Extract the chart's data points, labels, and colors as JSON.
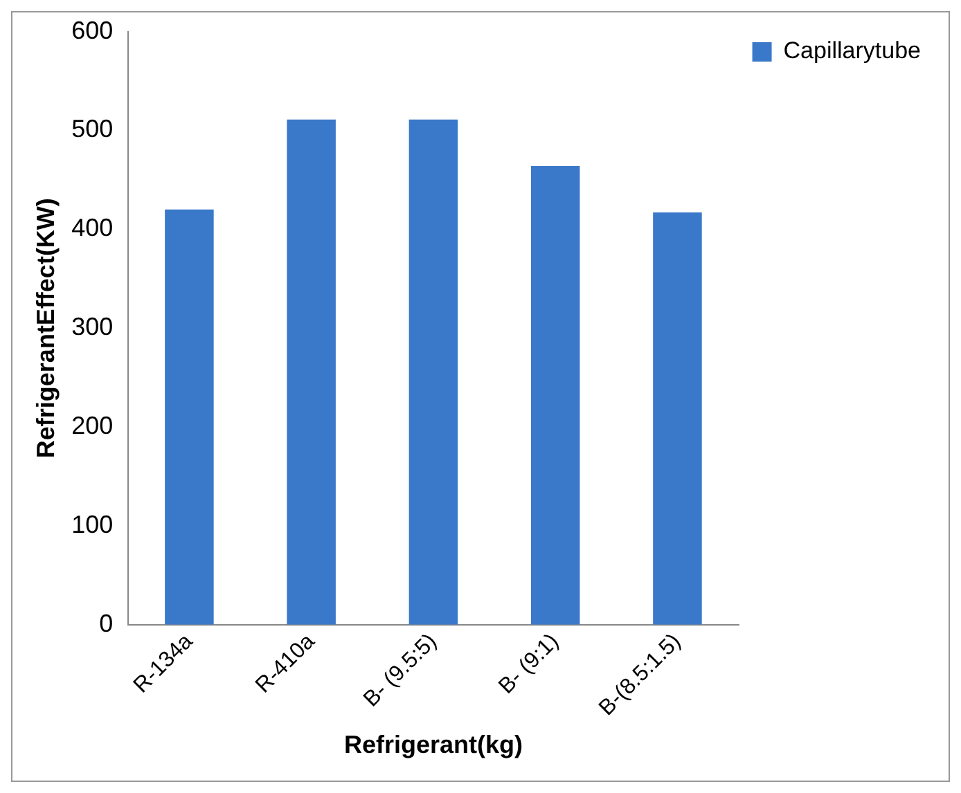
{
  "chart_data": {
    "type": "bar",
    "xlabel": "Refrigerant(kg)",
    "ylabel": "RefrigerantEffect(KW)",
    "categories": [
      "R-134a",
      "R-410a",
      "B- (9.5:5)",
      "B- (9:1)",
      "B-(8.5:1.5)"
    ],
    "series": [
      {
        "name": "Capillarytube",
        "color": "#3a78c9",
        "values": [
          420,
          511,
          511,
          464,
          417
        ]
      }
    ],
    "ylim": [
      0,
      600
    ],
    "yticks": [
      0,
      100,
      200,
      300,
      400,
      500,
      600
    ],
    "grid": false,
    "legend": "top right"
  }
}
